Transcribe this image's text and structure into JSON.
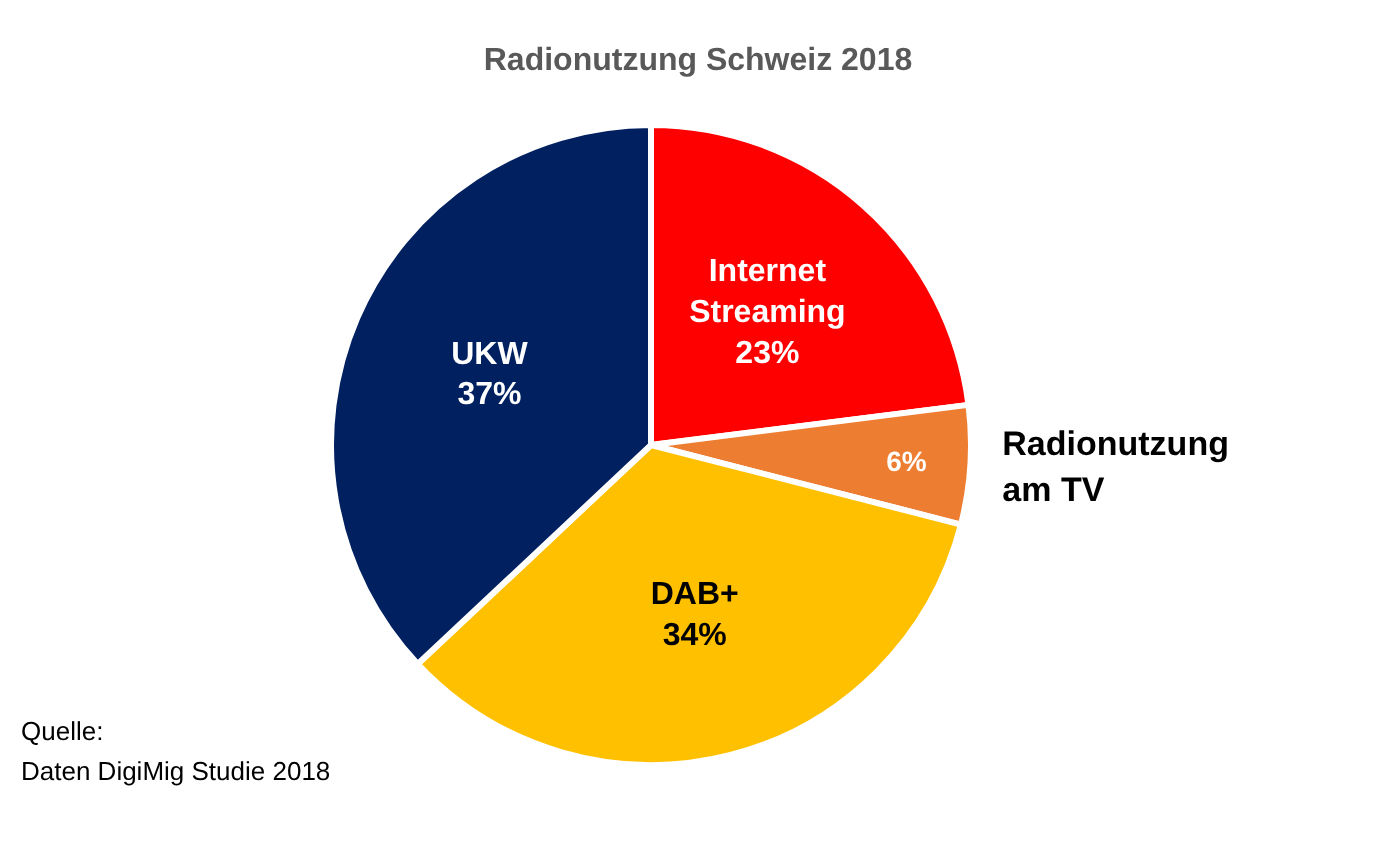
{
  "chart_data": {
    "type": "pie",
    "title": "Radionutzung Schweiz 2018",
    "categories": [
      "Internet Streaming",
      "Radionutzung am TV",
      "DAB+",
      "UKW"
    ],
    "values": [
      23,
      6,
      34,
      37
    ],
    "value_labels": [
      "23%",
      "6%",
      "34%",
      "37%"
    ],
    "colors": [
      "#ff0000",
      "#ed7d31",
      "#ffc000",
      "#002060"
    ],
    "annotations": [
      "Quelle:",
      "Daten DigiMig Studie 2018"
    ]
  }
}
